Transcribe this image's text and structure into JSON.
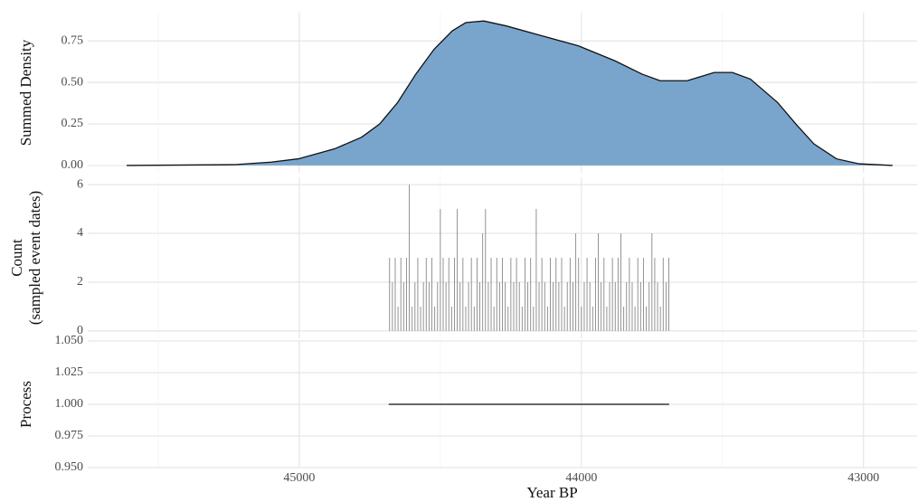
{
  "chart_data": [
    {
      "type": "area",
      "ylabel": "Summed Density",
      "color": "#6a9bc8",
      "line_color": "#111111",
      "x": [
        45612,
        45228,
        45100,
        45003,
        44875,
        44779,
        44715,
        44651,
        44587,
        44522,
        44458,
        44410,
        44346,
        44266,
        44138,
        44010,
        43881,
        43785,
        43721,
        43625,
        43529,
        43465,
        43401,
        43305,
        43240,
        43176,
        43096,
        43016,
        42897
      ],
      "values": [
        0.0,
        0.005,
        0.02,
        0.04,
        0.1,
        0.17,
        0.25,
        0.38,
        0.55,
        0.7,
        0.81,
        0.86,
        0.87,
        0.84,
        0.78,
        0.72,
        0.63,
        0.55,
        0.51,
        0.51,
        0.56,
        0.56,
        0.52,
        0.38,
        0.25,
        0.13,
        0.04,
        0.01,
        0.0
      ],
      "xlim": [
        45750,
        42810
      ],
      "xticks": [
        45000,
        44000,
        43000
      ],
      "xminor": [
        45500,
        44500,
        43500
      ],
      "ylim": [
        -0.044,
        0.92
      ],
      "yticks": [
        {
          "value": 0,
          "label": "0.00"
        },
        {
          "value": 0.25,
          "label": "0.25"
        },
        {
          "value": 0.5,
          "label": "0.50"
        },
        {
          "value": 0.75,
          "label": "0.75"
        }
      ],
      "grid": true
    },
    {
      "type": "spike",
      "ylabel": [
        "Count",
        "(sampled event dates)"
      ],
      "color": "#555555",
      "x": [
        44680,
        44670,
        44660,
        44650,
        44640,
        44630,
        44620,
        44610,
        44600,
        44590,
        44580,
        44570,
        44560,
        44550,
        44540,
        44530,
        44520,
        44510,
        44500,
        44490,
        44480,
        44470,
        44460,
        44450,
        44440,
        44430,
        44420,
        44410,
        44400,
        44390,
        44380,
        44370,
        44360,
        44350,
        44340,
        44330,
        44320,
        44310,
        44300,
        44290,
        44280,
        44270,
        44260,
        44250,
        44240,
        44230,
        44220,
        44210,
        44200,
        44190,
        44180,
        44170,
        44160,
        44150,
        44140,
        44130,
        44120,
        44110,
        44100,
        44090,
        44080,
        44070,
        44060,
        44050,
        44040,
        44030,
        44020,
        44010,
        44000,
        43990,
        43980,
        43970,
        43960,
        43950,
        43940,
        43930,
        43920,
        43910,
        43900,
        43890,
        43880,
        43870,
        43860,
        43850,
        43840,
        43830,
        43820,
        43810,
        43800,
        43790,
        43780,
        43770,
        43760,
        43750,
        43740,
        43730,
        43720,
        43710,
        43700,
        43690
      ],
      "values": [
        3,
        2,
        3,
        1,
        3,
        2,
        3,
        6,
        1,
        2,
        3,
        1,
        2,
        3,
        2,
        3,
        1,
        2,
        5,
        3,
        2,
        3,
        1,
        3,
        5,
        2,
        3,
        1,
        2,
        3,
        1,
        3,
        2,
        4,
        5,
        2,
        3,
        1,
        3,
        2,
        3,
        2,
        1,
        3,
        2,
        3,
        2,
        1,
        3,
        2,
        3,
        1,
        5,
        2,
        3,
        2,
        1,
        3,
        2,
        3,
        2,
        3,
        1,
        2,
        3,
        2,
        4,
        3,
        1,
        2,
        3,
        2,
        1,
        3,
        4,
        2,
        3,
        1,
        2,
        3,
        2,
        3,
        4,
        1,
        2,
        3,
        2,
        1,
        3,
        2,
        3,
        1,
        2,
        4,
        3,
        2,
        1,
        3,
        2,
        3
      ],
      "xlim": [
        45750,
        42810
      ],
      "xticks": [
        45000,
        44000,
        43000
      ],
      "xminor": [
        45500,
        44500,
        43500
      ],
      "ylim": [
        -0.3,
        6.3
      ],
      "yticks": [
        0,
        2,
        4,
        6
      ],
      "grid": true
    },
    {
      "type": "line",
      "ylabel": "Process",
      "xlabel": "Year BP",
      "color": "#111111",
      "x": [
        44683,
        43689
      ],
      "values": [
        1,
        1
      ],
      "xlim": [
        45750,
        42810
      ],
      "xticks": [
        45000,
        44000,
        43000
      ],
      "xminor": [
        45500,
        44500,
        43500
      ],
      "ylim": [
        0.95,
        1.05
      ],
      "yticks": [
        {
          "value": 0.95,
          "label": "0.950"
        },
        {
          "value": 0.975,
          "label": "0.975"
        },
        {
          "value": 1,
          "label": "1.000"
        },
        {
          "value": 1.025,
          "label": "1.025"
        },
        {
          "value": 1.05,
          "label": "1.050"
        }
      ],
      "grid": true
    }
  ]
}
